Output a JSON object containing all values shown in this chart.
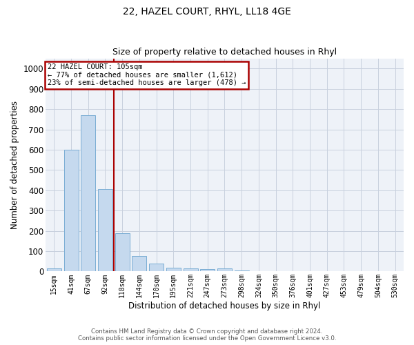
{
  "title1": "22, HAZEL COURT, RHYL, LL18 4GE",
  "title2": "Size of property relative to detached houses in Rhyl",
  "xlabel": "Distribution of detached houses by size in Rhyl",
  "ylabel": "Number of detached properties",
  "categories": [
    "15sqm",
    "41sqm",
    "67sqm",
    "92sqm",
    "118sqm",
    "144sqm",
    "170sqm",
    "195sqm",
    "221sqm",
    "247sqm",
    "273sqm",
    "298sqm",
    "324sqm",
    "350sqm",
    "376sqm",
    "401sqm",
    "427sqm",
    "453sqm",
    "479sqm",
    "504sqm",
    "530sqm"
  ],
  "values": [
    15,
    600,
    770,
    405,
    190,
    75,
    38,
    18,
    15,
    10,
    15,
    5,
    0,
    0,
    0,
    0,
    0,
    0,
    0,
    0,
    0
  ],
  "bar_color": "#c5d9ee",
  "bar_edge_color": "#7aadd4",
  "annotation_text": "22 HAZEL COURT: 105sqm\n← 77% of detached houses are smaller (1,612)\n23% of semi-detached houses are larger (478) →",
  "vline_x": 3.5,
  "vline_color": "#aa0000",
  "annotation_box_color": "#aa0000",
  "ylim": [
    0,
    1050
  ],
  "yticks": [
    0,
    100,
    200,
    300,
    400,
    500,
    600,
    700,
    800,
    900,
    1000
  ],
  "footer1": "Contains HM Land Registry data © Crown copyright and database right 2024.",
  "footer2": "Contains public sector information licensed under the Open Government Licence v3.0.",
  "plot_background": "#eef2f8",
  "grid_color": "#c8d0de"
}
